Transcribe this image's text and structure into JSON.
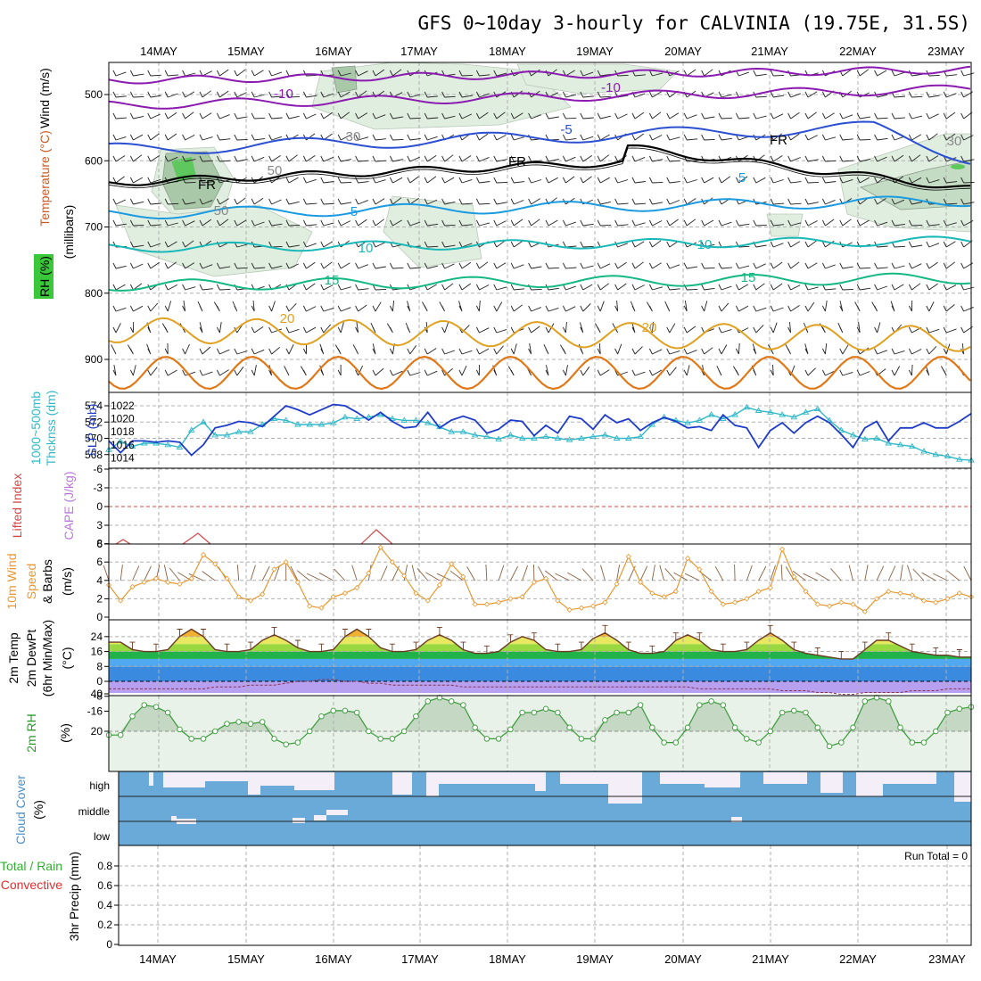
{
  "title": "GFS 0~10day 3-hourly for CALVINIA (19.75E, 31.5S)",
  "dates": [
    "14MAY",
    "15MAY",
    "16MAY",
    "17MAY",
    "18MAY",
    "19MAY",
    "20MAY",
    "21MAY",
    "22MAY",
    "23MAY"
  ],
  "colors": {
    "minus10": "#8a1ab0",
    "minus5": "#2a4fd0",
    "fr": "#000000",
    "plus5": "#1a9ae0",
    "plus10": "#18b8b8",
    "plus15": "#14b884",
    "plus20": "#e0a020",
    "plus25": "#e07818",
    "thickness": "#30b8c8",
    "slp": "#1e3cc8",
    "lifted": "#d04848",
    "wind10m": "#e89830",
    "rh2m": "#a8d0a8",
    "cloud": "#6aaad8",
    "cloudClear": "#f4eef8"
  },
  "panels": {
    "upper": {
      "ylabel_wind": "Wind (m/s)",
      "ylabel_temp": "Temperature (°C)",
      "ylabel_rh": "RH (%)",
      "ylabel_mb": "(millibars)",
      "ticks": [
        "500",
        "600",
        "700",
        "800",
        "900"
      ],
      "contour_labels": {
        "m10": "-10",
        "m5": "-5",
        "fr": "FR",
        "p5": "5",
        "p10": "10",
        "p15": "15",
        "p20": "20",
        "rh30": "30",
        "rh50": "50"
      }
    },
    "thickness": {
      "ylabel_left": "1000~500mb",
      "ylabel_left2": "Thcknss (dm)",
      "ylabel_right": "SLP (mb)",
      "ticks_left": [
        "574",
        "572",
        "570",
        "568"
      ],
      "ticks_right": [
        "1022",
        "1020",
        "1018",
        "1016",
        "1014"
      ]
    },
    "lifted": {
      "ylabel_left": "Lifted Index",
      "ylabel_right": "CAPE (J/kg)",
      "ticks": [
        "-6",
        "-3",
        "0",
        "3",
        "6"
      ]
    },
    "wind10": {
      "ylabel1": "10m Wind",
      "ylabel2": "Speed",
      "ylabel3": "& Barbs",
      "ylabel4": "(m/s)",
      "ticks": [
        "8",
        "6",
        "4",
        "2",
        "0"
      ]
    },
    "temp2m": {
      "ylabel1": "2m Temp",
      "ylabel2": "2m DewPt",
      "ylabel3": "(6hr Min/Max)",
      "ylabel4": "(°C)",
      "ticks": [
        "24",
        "16",
        "8",
        "0",
        "-8",
        "-16"
      ]
    },
    "rh2m": {
      "ylabel1": "2m RH",
      "ylabel2": "(%)",
      "ticks": [
        "40",
        "20"
      ]
    },
    "cloud": {
      "ylabel1": "Cloud Cover",
      "ylabel2": "(%)",
      "levels": [
        "high",
        "middle",
        "low"
      ]
    },
    "precip": {
      "ylabel_left": "Total / Rain",
      "ylabel_left2": "Convective",
      "ylabel_right": "3hr Precip (mm)",
      "ticks": [
        "0.8",
        "0.6",
        "0.4",
        "0.2",
        "0"
      ],
      "run_total": "Run Total = 0"
    }
  },
  "chart_data": [
    {
      "type": "line",
      "name": "upper-air",
      "pressure_ticks_mb": [
        500,
        600,
        700,
        800,
        900
      ],
      "contours_celsius": [
        -10,
        -5,
        0,
        5,
        10,
        15,
        20,
        25
      ]
    },
    {
      "type": "line",
      "name": "thickness-slp",
      "series": [
        {
          "name": "1000~500mb Thcknss (dm)",
          "values": [
            568.6,
            569.6,
            569.0,
            569.4,
            569.4,
            569.2,
            568.9,
            571.0,
            572.0,
            570.4,
            570.4,
            570.8,
            570.8,
            571.7,
            572.4,
            572.2,
            571.7,
            571.7,
            571.7,
            571.9,
            572.6,
            572.4,
            572.6,
            572.9,
            572.4,
            572.2,
            572.2,
            571.9,
            571.4,
            570.8,
            570.8,
            570.4,
            570.2,
            569.9,
            570.4,
            570.0,
            570.0,
            570.2,
            570.0,
            569.8,
            570.0,
            570.2,
            570.4,
            570.0,
            570.0,
            570.2,
            571.7,
            572.6,
            572.2,
            571.9,
            572.2,
            572.9,
            572.4,
            572.9,
            573.8,
            573.4,
            573.2,
            572.9,
            572.6,
            573.2,
            573.6,
            572.2,
            571.0,
            570.4,
            569.9,
            570.0,
            569.4,
            569.2,
            569.0,
            568.4,
            568.0,
            567.8,
            567.4,
            567.3
          ]
        },
        {
          "name": "SLP (mb)",
          "values": [
            1016.6,
            1014.8,
            1016.6,
            1016.6,
            1016.4,
            1016.6,
            1016.4,
            1014.4,
            1016.0,
            1018.6,
            1019.0,
            1019.6,
            1019.4,
            1018.8,
            1020.4,
            1022.0,
            1021.4,
            1020.6,
            1021.4,
            1022.2,
            1022.0,
            1021.0,
            1019.8,
            1021.0,
            1019.6,
            1018.6,
            1018.8,
            1021.0,
            1018.6,
            1019.8,
            1020.4,
            1019.8,
            1017.8,
            1018.4,
            1019.8,
            1019.6,
            1017.4,
            1019.0,
            1017.8,
            1020.4,
            1020.0,
            1018.4,
            1020.6,
            1019.4,
            1020.0,
            1018.2,
            1019.4,
            1020.2,
            1019.6,
            1018.6,
            1018.8,
            1018.2,
            1020.6,
            1019.0,
            1018.6,
            1015.6,
            1018.2,
            1019.4,
            1017.8,
            1019.4,
            1020.4,
            1019.4,
            1017.6,
            1015.6,
            1018.6,
            1019.6,
            1016.6,
            1018.6,
            1018.6,
            1019.4,
            1018.6,
            1018.6,
            1019.6,
            1020.8
          ]
        }
      ]
    },
    {
      "type": "line",
      "name": "lifted-index",
      "ylim": [
        -6,
        6
      ],
      "note_points": [
        [
          0.6,
          6
        ],
        [
          1.4,
          5.2
        ],
        [
          2.45,
          5.0
        ]
      ]
    },
    {
      "type": "line",
      "name": "10m-wind-speed",
      "ylim": [
        0,
        8
      ],
      "values": [
        3.5,
        1.8,
        3.3,
        3.8,
        4.2,
        3.8,
        3.6,
        4.2,
        6.8,
        5.8,
        4.2,
        2.2,
        1.8,
        2.5,
        5.2,
        6.0,
        3.8,
        1.2,
        1.0,
        2.2,
        2.6,
        3.2,
        4.8,
        7.6,
        6.0,
        4.5,
        2.6,
        1.8,
        3.5,
        5.8,
        4.4,
        1.4,
        1.4,
        1.6,
        2.0,
        2.2,
        3.8,
        4.2,
        1.8,
        0.8,
        1.0,
        1.2,
        1.6,
        3.6,
        6.6,
        3.8,
        2.6,
        2.2,
        2.8,
        6.4,
        5.2,
        2.8,
        1.4,
        1.6,
        2.0,
        2.8,
        3.2,
        7.4,
        4.4,
        2.8,
        1.4,
        1.2,
        1.6,
        1.4,
        0.6,
        2.0,
        2.8,
        2.6,
        2.4,
        1.8,
        1.6,
        2.0,
        2.6,
        2.2
      ]
    },
    {
      "type": "area",
      "name": "2m-temp-dewpoint",
      "ylim": [
        -16,
        28
      ],
      "temp": [
        21,
        21,
        17,
        16,
        16,
        17,
        24,
        28,
        24,
        17,
        16,
        16,
        17,
        22,
        25,
        22,
        18,
        16,
        16,
        17,
        24,
        28,
        24,
        18,
        16,
        16,
        17,
        22,
        25,
        22,
        17,
        15,
        15,
        16,
        21,
        24,
        22,
        17,
        16,
        16,
        17,
        23,
        26,
        22,
        17,
        15,
        15,
        16,
        22,
        25,
        22,
        17,
        16,
        16,
        17,
        22,
        26,
        22,
        17,
        15,
        14,
        13,
        12,
        12,
        17,
        22,
        22,
        19,
        16,
        15,
        14,
        14,
        13,
        13
      ],
      "dewpoint": [
        -4,
        -4,
        -4,
        -4,
        -4,
        -4,
        -4,
        -4,
        -4,
        -3,
        -3,
        -3,
        -2,
        -2,
        -2,
        -1,
        0,
        0,
        1,
        1,
        0,
        0,
        -1,
        -1,
        -2,
        -2,
        -2,
        -2,
        -2,
        -2,
        -3,
        -3,
        -3,
        -3,
        -3,
        -3,
        -3,
        -3,
        -3,
        -3,
        -3,
        -3,
        -3,
        -3,
        -3,
        -3,
        -3,
        -3,
        -3,
        -3,
        -4,
        -4,
        -4,
        -4,
        -4,
        -4,
        -4,
        -5,
        -5,
        -5,
        -6,
        -6,
        -7,
        -7,
        -6,
        -6,
        -6,
        -6,
        -5,
        -5,
        -5,
        -4,
        -4,
        -4
      ]
    },
    {
      "type": "area",
      "name": "2m-rh",
      "ylim": [
        0,
        46
      ],
      "values": [
        18,
        18,
        28,
        34,
        33,
        30,
        21,
        16,
        16,
        20,
        24,
        25,
        24,
        25,
        16,
        13,
        14,
        20,
        28,
        31,
        31,
        30,
        20,
        16,
        16,
        20,
        28,
        36,
        38,
        36,
        34,
        22,
        16,
        16,
        21,
        30,
        30,
        32,
        30,
        22,
        16,
        16,
        26,
        30,
        30,
        34,
        22,
        14,
        14,
        22,
        34,
        36,
        34,
        22,
        16,
        14,
        20,
        30,
        31,
        30,
        22,
        12,
        14,
        22,
        36,
        38,
        36,
        22,
        14,
        14,
        20,
        30,
        32,
        33
      ]
    },
    {
      "type": "heatmap",
      "name": "cloud-cover",
      "levels": [
        "high",
        "middle",
        "low"
      ]
    },
    {
      "type": "bar",
      "name": "3hr-precip",
      "ylim": [
        0,
        0.9
      ],
      "values": []
    }
  ]
}
